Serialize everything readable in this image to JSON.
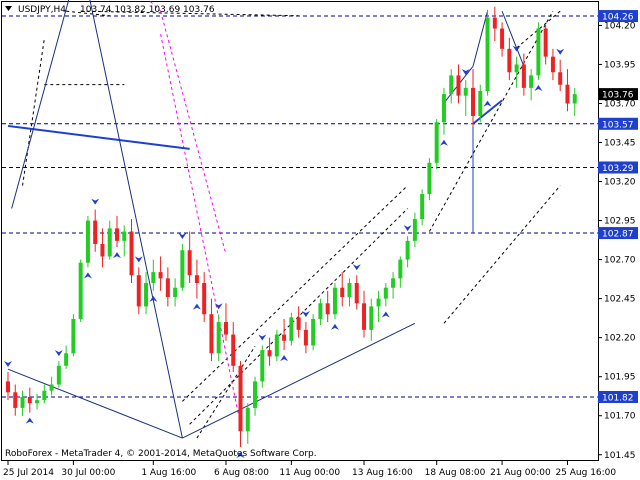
{
  "header": {
    "symbol_timeframe": "USDJPY,H4",
    "ohlc": "103.74 103.82 103.69 103.76"
  },
  "footer": {
    "copyright": "RoboForex - MetaTrader 4, © 2001-2014, MetaQuotes Software Corp."
  },
  "colors": {
    "bull": "#22cc22",
    "bear": "#ee2222",
    "support_resistance": "#00008b",
    "trendline": "#1f3fcf",
    "fractal_arrow": "#1f3fcf",
    "magenta_channel": "#ff00ff",
    "price_tag_bg": "#1f3fcf"
  },
  "chart_data": {
    "type": "candlestick",
    "instrument": "USDJPY",
    "timeframe": "H4",
    "last_price": 103.76,
    "ylim": [
      101.41,
      104.35
    ],
    "y_ticks": [
      "104.20",
      "103.95",
      "103.70",
      "103.45",
      "103.20",
      "102.95",
      "102.70",
      "102.45",
      "102.20",
      "101.95",
      "101.70",
      "101.45"
    ],
    "x_ticks": [
      "25 Jul 2014",
      "30 Jul 00:00",
      "1 Aug 16:00",
      "6 Aug 08:00",
      "11 Aug 00:00",
      "13 Aug 16:00",
      "18 Aug 08:00",
      "21 Aug 00:00",
      "25 Aug 16:00"
    ],
    "levels": [
      {
        "label": "104.26",
        "value": 104.26
      },
      {
        "label": "103.76",
        "value": 103.76,
        "current": true
      },
      {
        "label": "103.57",
        "value": 103.57
      },
      {
        "label": "103.29",
        "value": 103.29
      },
      {
        "label": "102.87",
        "value": 102.87
      },
      {
        "label": "101.82",
        "value": 101.82
      }
    ],
    "candles": [
      [
        101.92,
        101.98,
        101.8,
        101.85
      ],
      [
        101.85,
        101.9,
        101.7,
        101.75
      ],
      [
        101.75,
        101.86,
        101.7,
        101.82
      ],
      [
        101.82,
        101.88,
        101.72,
        101.78
      ],
      [
        101.78,
        101.84,
        101.74,
        101.8
      ],
      [
        101.8,
        101.9,
        101.78,
        101.86
      ],
      [
        101.86,
        101.95,
        101.83,
        101.9
      ],
      [
        101.9,
        102.05,
        101.88,
        102.02
      ],
      [
        102.02,
        102.15,
        102.0,
        102.1
      ],
      [
        102.1,
        102.35,
        102.08,
        102.32
      ],
      [
        102.32,
        102.7,
        102.3,
        102.68
      ],
      [
        102.68,
        102.98,
        102.65,
        102.95
      ],
      [
        102.95,
        103.02,
        102.75,
        102.8
      ],
      [
        102.8,
        102.9,
        102.65,
        102.72
      ],
      [
        102.72,
        102.95,
        102.7,
        102.9
      ],
      [
        102.9,
        102.98,
        102.78,
        102.82
      ],
      [
        102.82,
        102.92,
        102.72,
        102.88
      ],
      [
        102.88,
        102.96,
        102.55,
        102.6
      ],
      [
        102.6,
        102.65,
        102.35,
        102.4
      ],
      [
        102.4,
        102.62,
        102.35,
        102.55
      ],
      [
        102.55,
        102.7,
        102.5,
        102.62
      ],
      [
        102.62,
        102.72,
        102.5,
        102.58
      ],
      [
        102.58,
        102.65,
        102.4,
        102.46
      ],
      [
        102.46,
        102.58,
        102.4,
        102.52
      ],
      [
        102.52,
        102.8,
        102.5,
        102.76
      ],
      [
        102.76,
        102.88,
        102.55,
        102.6
      ],
      [
        102.6,
        102.7,
        102.45,
        102.55
      ],
      [
        102.55,
        102.62,
        102.3,
        102.35
      ],
      [
        102.35,
        102.45,
        102.05,
        102.1
      ],
      [
        102.1,
        102.35,
        102.05,
        102.3
      ],
      [
        102.3,
        102.42,
        102.18,
        102.22
      ],
      [
        102.22,
        102.3,
        101.98,
        102.02
      ],
      [
        102.02,
        102.05,
        101.5,
        101.6
      ],
      [
        101.6,
        101.78,
        101.52,
        101.75
      ],
      [
        101.75,
        101.95,
        101.7,
        101.92
      ],
      [
        101.92,
        102.15,
        101.88,
        102.12
      ],
      [
        102.12,
        102.2,
        102.02,
        102.08
      ],
      [
        102.08,
        102.25,
        102.05,
        102.22
      ],
      [
        102.22,
        102.32,
        102.12,
        102.18
      ],
      [
        102.18,
        102.36,
        102.15,
        102.33
      ],
      [
        102.33,
        102.4,
        102.2,
        102.25
      ],
      [
        102.25,
        102.3,
        102.1,
        102.15
      ],
      [
        102.15,
        102.35,
        102.12,
        102.32
      ],
      [
        102.32,
        102.45,
        102.28,
        102.42
      ],
      [
        102.42,
        102.5,
        102.3,
        102.35
      ],
      [
        102.35,
        102.55,
        102.32,
        102.52
      ],
      [
        102.52,
        102.62,
        102.4,
        102.46
      ],
      [
        102.46,
        102.58,
        102.4,
        102.55
      ],
      [
        102.55,
        102.6,
        102.38,
        102.42
      ],
      [
        102.42,
        102.5,
        102.2,
        102.25
      ],
      [
        102.25,
        102.45,
        102.18,
        102.4
      ],
      [
        102.4,
        102.5,
        102.3,
        102.45
      ],
      [
        102.45,
        102.55,
        102.4,
        102.52
      ],
      [
        102.52,
        102.62,
        102.45,
        102.58
      ],
      [
        102.58,
        102.72,
        102.52,
        102.7
      ],
      [
        102.7,
        102.85,
        102.65,
        102.82
      ],
      [
        102.82,
        103.0,
        102.78,
        102.96
      ],
      [
        102.96,
        103.15,
        102.92,
        103.12
      ],
      [
        103.12,
        103.35,
        103.08,
        103.32
      ],
      [
        103.32,
        103.6,
        103.28,
        103.58
      ],
      [
        103.58,
        103.8,
        103.5,
        103.76
      ],
      [
        103.76,
        103.92,
        103.7,
        103.88
      ],
      [
        103.88,
        103.95,
        103.7,
        103.75
      ],
      [
        103.75,
        103.85,
        103.62,
        103.8
      ],
      [
        103.8,
        103.92,
        103.55,
        103.62
      ],
      [
        103.62,
        103.82,
        103.58,
        103.78
      ],
      [
        103.78,
        104.3,
        103.75,
        104.25
      ],
      [
        104.25,
        104.32,
        104.1,
        104.18
      ],
      [
        104.18,
        104.22,
        104.0,
        104.05
      ],
      [
        104.05,
        104.12,
        103.85,
        103.9
      ],
      [
        103.9,
        104.0,
        103.8,
        103.95
      ],
      [
        103.95,
        104.02,
        103.75,
        103.8
      ],
      [
        103.8,
        103.92,
        103.72,
        103.88
      ],
      [
        103.88,
        104.22,
        103.85,
        104.18
      ],
      [
        104.18,
        104.2,
        103.95,
        104.0
      ],
      [
        104.0,
        104.05,
        103.85,
        103.9
      ],
      [
        103.9,
        103.98,
        103.78,
        103.82
      ],
      [
        103.82,
        103.92,
        103.65,
        103.7
      ],
      [
        103.7,
        103.8,
        103.62,
        103.76
      ]
    ],
    "dotted_lines": [
      [
        [
          2,
          0.6
        ],
        [
          5,
          0.92
        ]
      ],
      [
        [
          8,
          0.98
        ],
        [
          14,
          0.97
        ]
      ],
      [
        [
          10,
          0.98
        ],
        [
          40,
          0.97
        ]
      ],
      [
        [
          24,
          0.13
        ],
        [
          55,
          0.6
        ]
      ],
      [
        [
          25,
          0.08
        ],
        [
          55,
          0.55
        ]
      ],
      [
        [
          26,
          0.05
        ],
        [
          34,
          0.25
        ]
      ],
      [
        [
          5,
          0.82
        ],
        [
          16,
          0.82
        ]
      ],
      [
        [
          58,
          0.5
        ],
        [
          75,
          0.98
        ]
      ],
      [
        [
          60,
          0.3
        ],
        [
          76,
          0.6
        ]
      ],
      [
        [
          70,
          0.9
        ],
        [
          76,
          0.98
        ]
      ]
    ],
    "solid_lines": [
      [
        [
          0.5,
          0.55
        ],
        [
          10,
          1.1
        ]
      ],
      [
        [
          0,
          0.73
        ],
        [
          25,
          0.68
        ]
      ],
      [
        [
          10,
          1.1
        ],
        [
          24,
          0.05
        ]
      ],
      [
        [
          24,
          0.05
        ],
        [
          0,
          0.2
        ]
      ],
      [
        [
          24,
          0.05
        ],
        [
          56,
          0.3
        ]
      ],
      [
        [
          60,
          0.78
        ],
        [
          64,
          0.86
        ]
      ],
      [
        [
          64,
          0.86
        ],
        [
          66,
          0.98
        ]
      ],
      [
        [
          68,
          0.98
        ],
        [
          71,
          0.86
        ]
      ]
    ],
    "magenta_lines": [
      [
        [
          13,
          1.1
        ],
        [
          21,
          0.98
        ]
      ],
      [
        [
          21,
          0.98
        ],
        [
          30,
          0.45
        ]
      ],
      [
        [
          21,
          0.93
        ],
        [
          32,
          0.08
        ]
      ]
    ]
  }
}
